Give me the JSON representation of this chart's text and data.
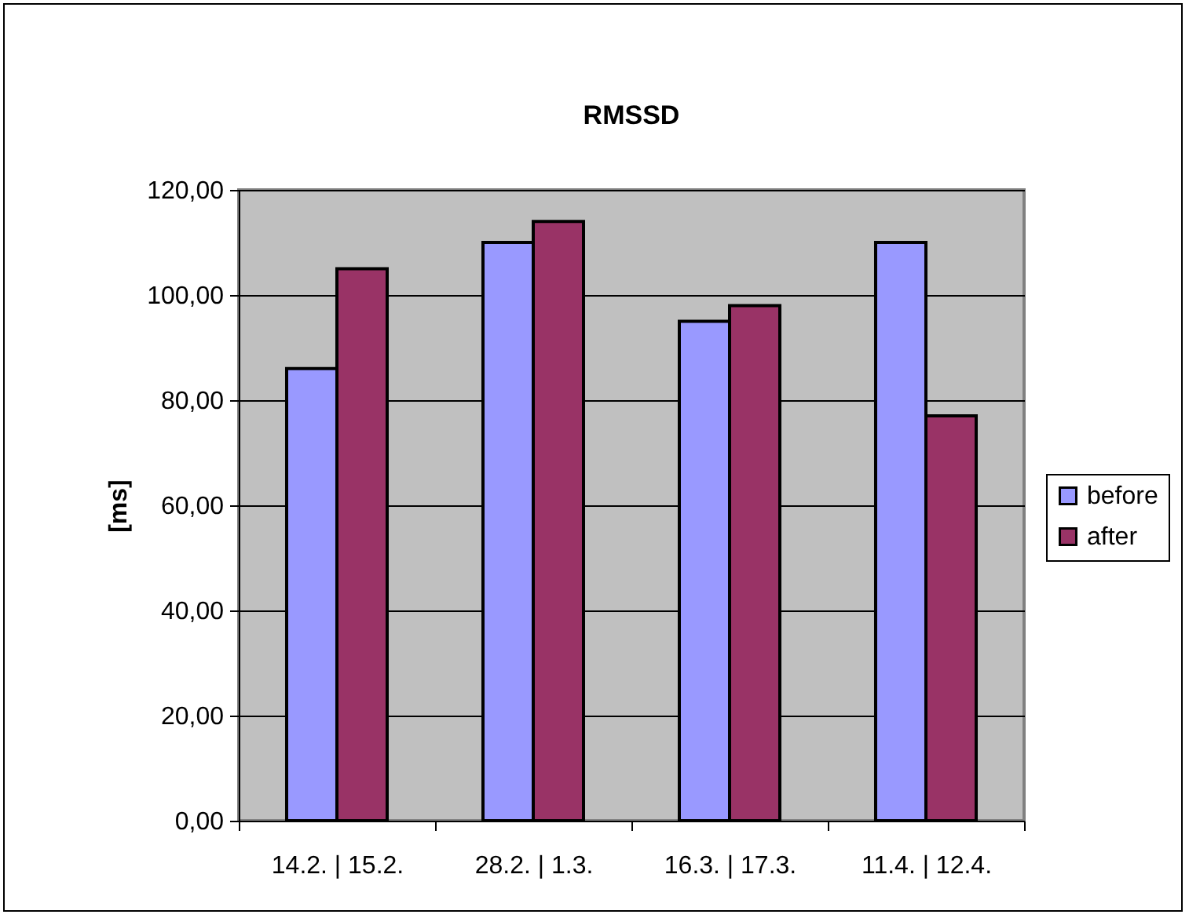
{
  "chart_data": {
    "type": "bar",
    "title": "RMSSD",
    "ylabel": "[ms]",
    "categories": [
      "14.2. | 15.2.",
      "28.2. | 1.3.",
      "16.3. | 17.3.",
      "11.4. | 12.4."
    ],
    "series": [
      {
        "name": "before",
        "color": "#9999ff",
        "values": [
          86,
          110,
          95,
          110
        ]
      },
      {
        "name": "after",
        "color": "#993366",
        "values": [
          105,
          114,
          98,
          77
        ]
      }
    ],
    "ylim": [
      0,
      120
    ],
    "yticks": [
      {
        "value": 0,
        "label": "0,00"
      },
      {
        "value": 20,
        "label": "20,00"
      },
      {
        "value": 40,
        "label": "40,00"
      },
      {
        "value": 60,
        "label": "60,00"
      },
      {
        "value": 80,
        "label": "80,00"
      },
      {
        "value": 100,
        "label": "100,00"
      },
      {
        "value": 120,
        "label": "120,00"
      }
    ],
    "grid": "y",
    "legend": "right"
  }
}
